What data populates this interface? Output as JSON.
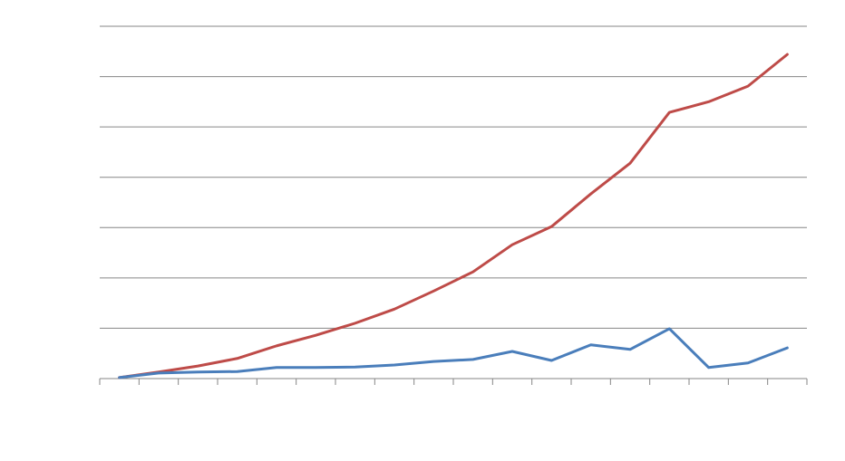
{
  "chart_data": {
    "type": "line",
    "categories": [
      null,
      null,
      null,
      null,
      null,
      null,
      null,
      null,
      null,
      null,
      null,
      null,
      null,
      null,
      null,
      null,
      null,
      null
    ],
    "series": [
      {
        "color": "#be4b48",
        "values": [
          0.02,
          0.13,
          0.25,
          0.4,
          0.65,
          0.86,
          1.1,
          1.38,
          1.74,
          2.12,
          2.66,
          3.02,
          3.67,
          4.28,
          5.29,
          5.5,
          5.81,
          6.44
        ]
      },
      {
        "color": "#4a7ebb",
        "values": [
          0.02,
          0.11,
          0.13,
          0.14,
          0.22,
          0.22,
          0.23,
          0.27,
          0.34,
          0.38,
          0.54,
          0.36,
          0.67,
          0.58,
          0.99,
          0.22,
          0.31,
          0.61
        ]
      }
    ],
    "ylim": [
      0,
      7
    ],
    "yticks": [
      0,
      1,
      2,
      3,
      4,
      5,
      6,
      7
    ],
    "grid": true
  }
}
